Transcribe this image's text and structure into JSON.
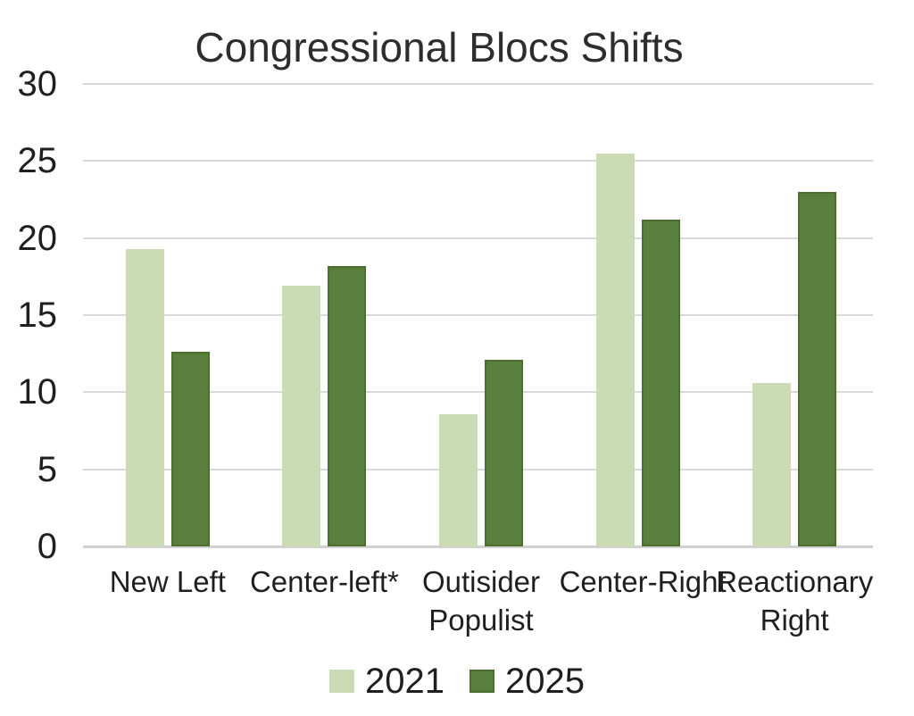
{
  "chart_data": {
    "type": "bar",
    "title": "Congressional Blocs Shifts",
    "categories": [
      "New Left",
      "Center-left*",
      "Outisider Populist",
      "Center-Right",
      "Reactionary Right"
    ],
    "category_label_lines": [
      [
        "New Left"
      ],
      [
        "Center-left*"
      ],
      [
        "Outisider",
        "Populist"
      ],
      [
        "Center-Right"
      ],
      [
        "Reactionary",
        "Right"
      ]
    ],
    "series": [
      {
        "name": "2021",
        "color": "#cbdcb5",
        "values": [
          19.3,
          16.9,
          8.6,
          25.5,
          10.6
        ]
      },
      {
        "name": "2025",
        "color": "#5a7f3c",
        "border_color": "#4c6e2e",
        "values": [
          12.6,
          18.2,
          12.1,
          21.2,
          23.0
        ]
      }
    ],
    "ylim": [
      0,
      30
    ],
    "yticks": [
      30,
      25,
      20,
      15,
      10,
      5,
      0
    ],
    "grid": true,
    "gridline_color": "#d9d9d9",
    "legend_position": "bottom",
    "text_color": "#1f1f1f"
  }
}
